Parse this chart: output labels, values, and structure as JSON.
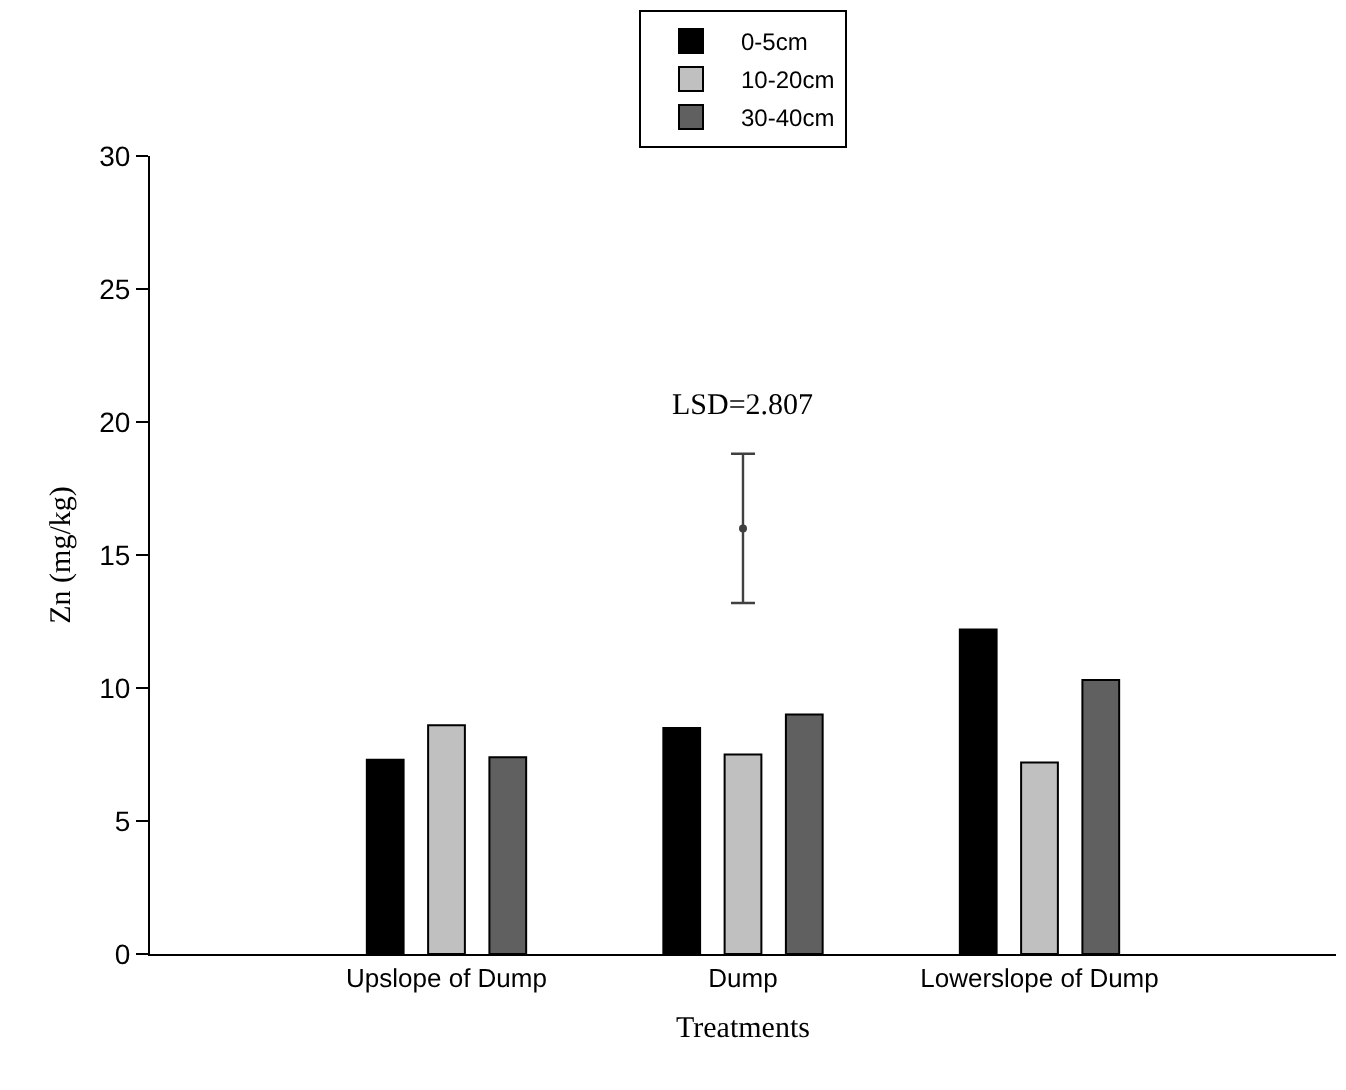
{
  "chart_data": {
    "type": "bar",
    "xlabel": "Treatments",
    "ylabel": "Zn (mg/kg)",
    "categories": [
      "Upslope of Dump",
      "Dump",
      "Lowerslope of Dump"
    ],
    "series": [
      {
        "name": "0-5cm",
        "color": "#000000",
        "values": [
          7.3,
          8.5,
          12.2
        ]
      },
      {
        "name": "10-20cm",
        "color": "#c0c0c0",
        "values": [
          8.6,
          7.5,
          7.2
        ]
      },
      {
        "name": "30-40cm",
        "color": "#606060",
        "values": [
          7.4,
          9.0,
          10.3
        ]
      },
      {
        "type": "scatter",
        "color": "#404040",
        "x": [
          "Dump"
        ],
        "values": [
          16.0
        ],
        "errors": [
          2.807
        ]
      }
    ],
    "marker": "circle",
    "ylim": [
      0,
      30
    ],
    "yticks": [
      0,
      5,
      10,
      15,
      20,
      25,
      30
    ],
    "legend": "top",
    "annotations": [
      "LSD=2.807"
    ]
  }
}
